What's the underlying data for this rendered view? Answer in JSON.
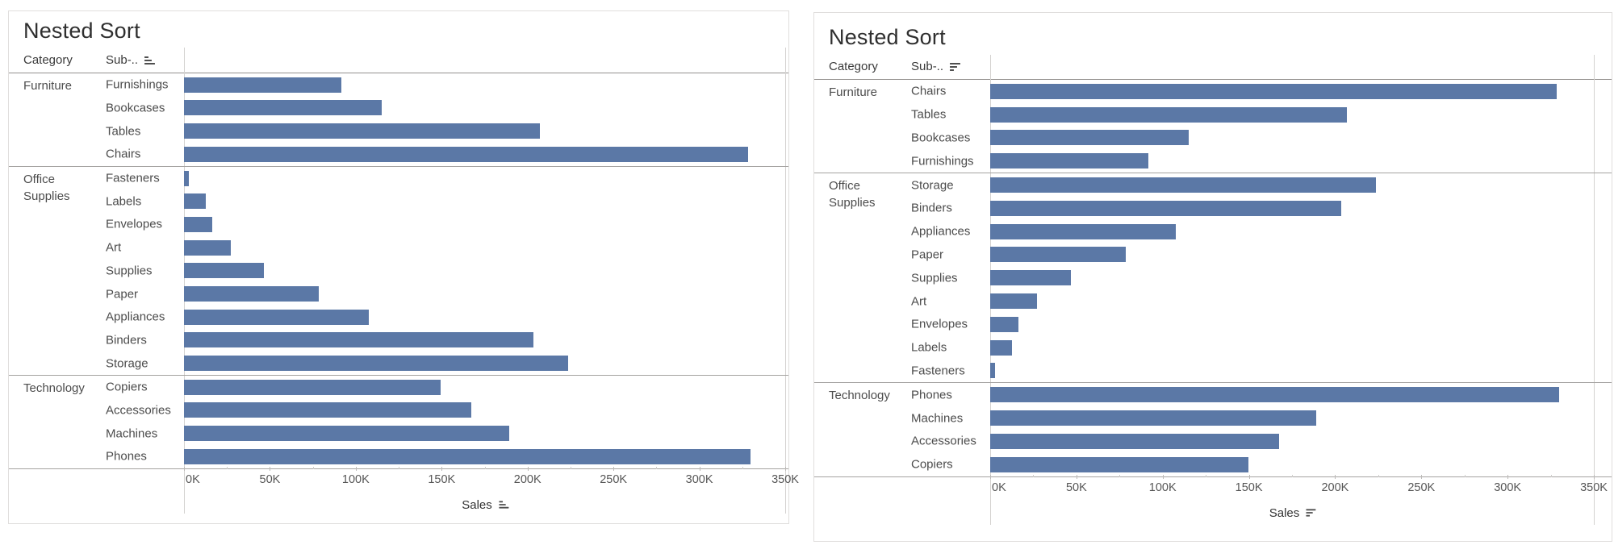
{
  "app": {
    "background": "#ffffff"
  },
  "colors": {
    "bar": "#5b78a6",
    "separator_line": "#a5a3a1",
    "header_line": "#94918f",
    "axis_line": "#d4d2d0",
    "card_border": "#e0dedd"
  },
  "chart_data": [
    {
      "type": "bar",
      "orientation": "horizontal",
      "title": "Nested Sort",
      "sort": "ascending",
      "column_headers": {
        "category": "Category",
        "subcategory": "Sub-.."
      },
      "xlabel": "Sales",
      "x_ticks": [
        "0K",
        "50K",
        "100K",
        "150K",
        "200K",
        "250K",
        "300K",
        "350K"
      ],
      "xlim": [
        0,
        350000
      ],
      "legend": "none",
      "grid": "off",
      "groups": [
        {
          "category": "Furniture",
          "items": [
            {
              "label": "Furnishings",
              "value": 91705
            },
            {
              "label": "Bookcases",
              "value": 114880
            },
            {
              "label": "Tables",
              "value": 206966
            },
            {
              "label": "Chairs",
              "value": 328449
            }
          ]
        },
        {
          "category": "Office Supplies",
          "items": [
            {
              "label": "Fasteners",
              "value": 3024
            },
            {
              "label": "Labels",
              "value": 12486
            },
            {
              "label": "Envelopes",
              "value": 16476
            },
            {
              "label": "Art",
              "value": 27119
            },
            {
              "label": "Supplies",
              "value": 46674
            },
            {
              "label": "Paper",
              "value": 78479
            },
            {
              "label": "Appliances",
              "value": 107532
            },
            {
              "label": "Binders",
              "value": 203413
            },
            {
              "label": "Storage",
              "value": 223844
            }
          ]
        },
        {
          "category": "Technology",
          "items": [
            {
              "label": "Copiers",
              "value": 149528
            },
            {
              "label": "Accessories",
              "value": 167380
            },
            {
              "label": "Machines",
              "value": 189239
            },
            {
              "label": "Phones",
              "value": 330007
            }
          ]
        }
      ]
    },
    {
      "type": "bar",
      "orientation": "horizontal",
      "title": "Nested Sort",
      "sort": "descending",
      "column_headers": {
        "category": "Category",
        "subcategory": "Sub-.."
      },
      "xlabel": "Sales",
      "x_ticks": [
        "0K",
        "50K",
        "100K",
        "150K",
        "200K",
        "250K",
        "300K",
        "350K"
      ],
      "xlim": [
        0,
        350000
      ],
      "legend": "none",
      "grid": "off",
      "groups": [
        {
          "category": "Furniture",
          "items": [
            {
              "label": "Chairs",
              "value": 328449
            },
            {
              "label": "Tables",
              "value": 206966
            },
            {
              "label": "Bookcases",
              "value": 114880
            },
            {
              "label": "Furnishings",
              "value": 91705
            }
          ]
        },
        {
          "category": "Office Supplies",
          "items": [
            {
              "label": "Storage",
              "value": 223844
            },
            {
              "label": "Binders",
              "value": 203413
            },
            {
              "label": "Appliances",
              "value": 107532
            },
            {
              "label": "Paper",
              "value": 78479
            },
            {
              "label": "Supplies",
              "value": 46674
            },
            {
              "label": "Art",
              "value": 27119
            },
            {
              "label": "Envelopes",
              "value": 16476
            },
            {
              "label": "Labels",
              "value": 12486
            },
            {
              "label": "Fasteners",
              "value": 3024
            }
          ]
        },
        {
          "category": "Technology",
          "items": [
            {
              "label": "Phones",
              "value": 330007
            },
            {
              "label": "Machines",
              "value": 189239
            },
            {
              "label": "Accessories",
              "value": 167380
            },
            {
              "label": "Copiers",
              "value": 149528
            }
          ]
        }
      ]
    }
  ]
}
